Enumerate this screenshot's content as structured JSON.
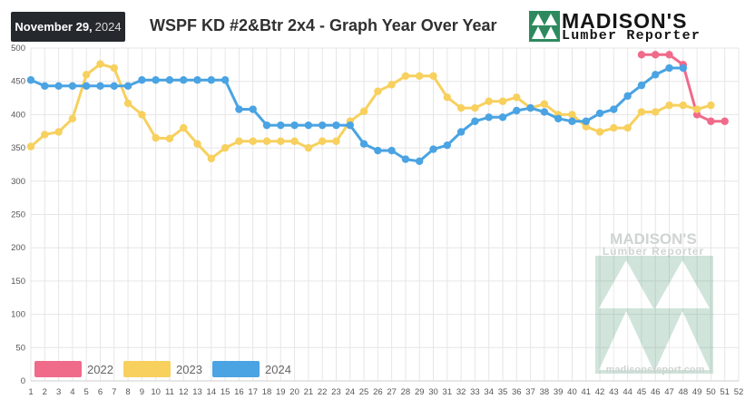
{
  "header": {
    "date_md": "November 29,",
    "date_year": "2024",
    "title": "WSPF KD #2&Btr 2x4 - Graph Year Over Year",
    "logo_line1": "MADISON'S",
    "logo_line2": "Lumber Reporter"
  },
  "watermark": {
    "line1": "MADISON'S",
    "line2": "Lumber Reporter",
    "url": "madisonsreport.com"
  },
  "colors": {
    "2022": "#f06a8a",
    "2023": "#f7d05e",
    "2024": "#4aa3e2",
    "grid": "#e6e6e6",
    "logo_green": "#2e8a5e"
  },
  "chart_data": {
    "type": "line",
    "title": "WSPF KD #2&Btr 2x4 - Graph Year Over Year",
    "x": [
      1,
      2,
      3,
      4,
      5,
      6,
      7,
      8,
      9,
      10,
      11,
      12,
      13,
      14,
      15,
      16,
      17,
      18,
      19,
      20,
      21,
      22,
      23,
      24,
      25,
      26,
      27,
      28,
      29,
      30,
      31,
      32,
      33,
      34,
      35,
      36,
      37,
      38,
      39,
      40,
      41,
      42,
      43,
      44,
      45,
      46,
      47,
      48,
      49,
      50,
      51,
      52
    ],
    "xlim": [
      1,
      52
    ],
    "ylim": [
      0,
      500
    ],
    "yticks": [
      0,
      50,
      100,
      150,
      200,
      250,
      300,
      350,
      400,
      450,
      500
    ],
    "grid": true,
    "legend_position": "bottom-left",
    "series": [
      {
        "name": "2022",
        "color": "#f06a8a",
        "x": [
          45,
          46,
          47,
          48,
          49,
          50,
          51
        ],
        "values": [
          490,
          490,
          490,
          475,
          400,
          390,
          390
        ]
      },
      {
        "name": "2023",
        "color": "#f7d05e",
        "x": [
          1,
          2,
          3,
          4,
          5,
          6,
          7,
          8,
          9,
          10,
          11,
          12,
          13,
          14,
          15,
          16,
          17,
          18,
          19,
          20,
          21,
          22,
          23,
          24,
          25,
          26,
          27,
          28,
          29,
          30,
          31,
          32,
          33,
          34,
          35,
          36,
          37,
          38,
          39,
          40,
          41,
          42,
          43,
          44,
          45,
          46,
          47,
          48,
          49,
          50
        ],
        "values": [
          352,
          370,
          374,
          394,
          460,
          476,
          470,
          417,
          400,
          365,
          364,
          380,
          356,
          334,
          350,
          360,
          360,
          360,
          360,
          360,
          350,
          360,
          360,
          390,
          405,
          435,
          445,
          458,
          458,
          458,
          426,
          410,
          410,
          420,
          420,
          426,
          410,
          416,
          400,
          400,
          382,
          374,
          380,
          380,
          404,
          404,
          414,
          414,
          408,
          414
        ]
      },
      {
        "name": "2024",
        "color": "#4aa3e2",
        "x": [
          1,
          2,
          3,
          4,
          5,
          6,
          7,
          8,
          9,
          10,
          11,
          12,
          13,
          14,
          15,
          16,
          17,
          18,
          19,
          20,
          21,
          22,
          23,
          24,
          25,
          26,
          27,
          28,
          29,
          30,
          31,
          32,
          33,
          34,
          35,
          36,
          37,
          38,
          39,
          40,
          41,
          42,
          43,
          44,
          45,
          46,
          47,
          48
        ],
        "values": [
          452,
          443,
          443,
          443,
          443,
          443,
          443,
          443,
          452,
          452,
          452,
          452,
          452,
          452,
          452,
          408,
          408,
          384,
          384,
          384,
          384,
          384,
          384,
          384,
          356,
          346,
          346,
          333,
          330,
          348,
          354,
          374,
          390,
          396,
          396,
          406,
          410,
          404,
          394,
          390,
          390,
          402,
          408,
          428,
          444,
          460,
          470,
          470
        ]
      }
    ]
  }
}
